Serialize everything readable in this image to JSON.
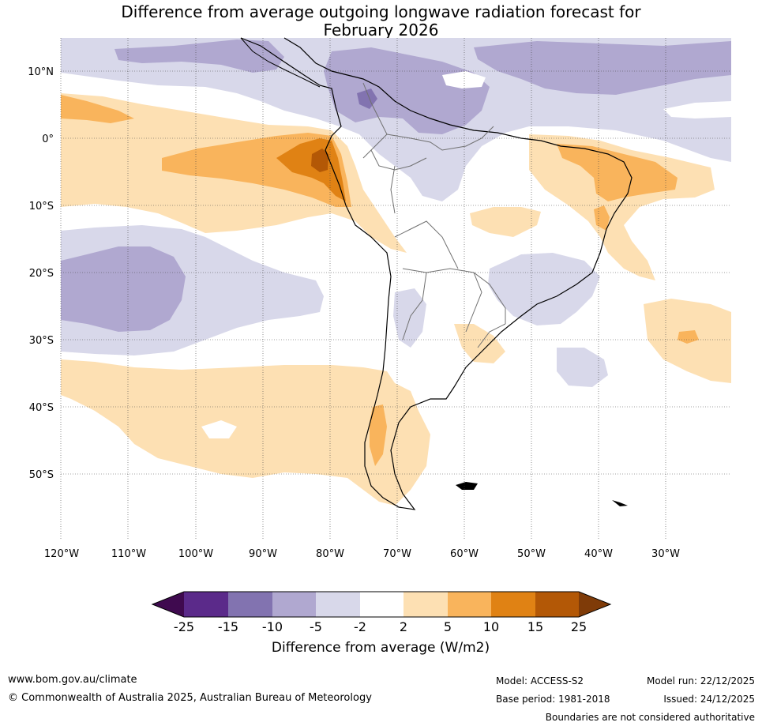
{
  "title": {
    "line1": "Difference from average outgoing longwave radiation forecast for",
    "line2": "February 2026"
  },
  "map": {
    "lat_labels": [
      "10°N",
      "0°",
      "10°S",
      "20°S",
      "30°S",
      "40°S",
      "50°S"
    ],
    "lon_labels": [
      "120°W",
      "110°W",
      "100°W",
      "90°W",
      "80°W",
      "70°W",
      "60°W",
      "50°W",
      "40°W",
      "30°W"
    ],
    "extent": {
      "lon_min": -120,
      "lon_max": -20,
      "lat_min": -60,
      "lat_max": 15
    }
  },
  "colorbar": {
    "tick_labels": [
      "-25",
      "-15",
      "-10",
      "-5",
      "-2",
      "2",
      "5",
      "10",
      "15",
      "25"
    ],
    "colors": [
      "#3f0a4f",
      "#5b2a8a",
      "#8273b0",
      "#b0a8d0",
      "#d8d8ea",
      "#ffffff",
      "#fde0b3",
      "#f9b45c",
      "#e08214",
      "#b35806",
      "#7f3b08"
    ],
    "title": "Difference from average (W/m2)"
  },
  "footer": {
    "url": "www.bom.gov.au/climate",
    "copyright": "© Commonwealth of Australia 2025, Australian Bureau of Meteorology",
    "model": "Model: ACCESS-S2",
    "base_period": "Base period: 1981-2018",
    "model_run": "Model run: 22/12/2025",
    "issued": "Issued: 24/12/2025",
    "disclaimer": "Boundaries are not considered authoritative"
  }
}
